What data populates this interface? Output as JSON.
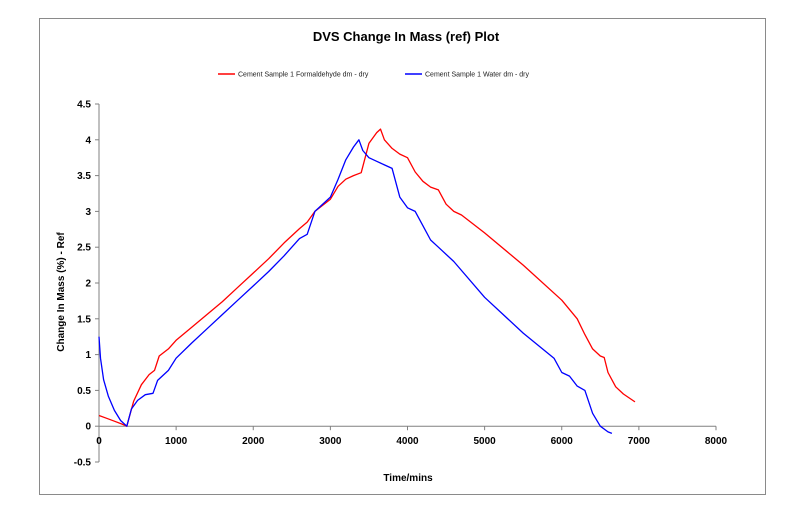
{
  "chart_data": {
    "type": "line",
    "title": "DVS Change In Mass (ref) Plot",
    "xlabel": "Time/mins",
    "ylabel": "Change In Mass (%) - Ref",
    "xlim": [
      0,
      8000
    ],
    "ylim": [
      -0.5,
      4.5
    ],
    "x_ticks": [
      "0",
      "1000",
      "2000",
      "3000",
      "4000",
      "5000",
      "6000",
      "7000",
      "8000"
    ],
    "y_ticks": [
      "4.5",
      "4",
      "3.5",
      "3",
      "2.5",
      "2",
      "1.5",
      "1",
      "0.5",
      "0",
      "-0.5"
    ],
    "grid": false,
    "legend_position": "top",
    "series": [
      {
        "name": "Cement Sample 1 Formaldehyde dm - dry",
        "color": "#ff0000",
        "points": [
          [
            0,
            0.15
          ],
          [
            100,
            0.11
          ],
          [
            200,
            0.07
          ],
          [
            300,
            0.03
          ],
          [
            360,
            0.0
          ],
          [
            450,
            0.35
          ],
          [
            550,
            0.58
          ],
          [
            650,
            0.72
          ],
          [
            720,
            0.78
          ],
          [
            780,
            0.98
          ],
          [
            900,
            1.08
          ],
          [
            1000,
            1.2
          ],
          [
            1200,
            1.38
          ],
          [
            1400,
            1.56
          ],
          [
            1600,
            1.74
          ],
          [
            1800,
            1.94
          ],
          [
            2000,
            2.14
          ],
          [
            2200,
            2.34
          ],
          [
            2400,
            2.56
          ],
          [
            2600,
            2.76
          ],
          [
            2700,
            2.85
          ],
          [
            2800,
            3.0
          ],
          [
            3000,
            3.17
          ],
          [
            3100,
            3.35
          ],
          [
            3200,
            3.45
          ],
          [
            3300,
            3.5
          ],
          [
            3400,
            3.54
          ],
          [
            3500,
            3.95
          ],
          [
            3600,
            4.1
          ],
          [
            3650,
            4.15
          ],
          [
            3700,
            4.0
          ],
          [
            3800,
            3.88
          ],
          [
            3900,
            3.8
          ],
          [
            4000,
            3.75
          ],
          [
            4100,
            3.55
          ],
          [
            4200,
            3.42
          ],
          [
            4300,
            3.34
          ],
          [
            4400,
            3.3
          ],
          [
            4500,
            3.1
          ],
          [
            4600,
            3.0
          ],
          [
            4700,
            2.95
          ],
          [
            5000,
            2.7
          ],
          [
            5500,
            2.25
          ],
          [
            6000,
            1.76
          ],
          [
            6200,
            1.5
          ],
          [
            6300,
            1.28
          ],
          [
            6400,
            1.08
          ],
          [
            6500,
            0.98
          ],
          [
            6550,
            0.96
          ],
          [
            6600,
            0.75
          ],
          [
            6700,
            0.55
          ],
          [
            6800,
            0.45
          ],
          [
            6950,
            0.34
          ]
        ]
      },
      {
        "name": "Cement Sample 1 Water dm - dry",
        "color": "#0000ff",
        "points": [
          [
            0,
            1.25
          ],
          [
            20,
            0.95
          ],
          [
            60,
            0.65
          ],
          [
            120,
            0.42
          ],
          [
            200,
            0.22
          ],
          [
            280,
            0.08
          ],
          [
            360,
            0.0
          ],
          [
            420,
            0.24
          ],
          [
            500,
            0.36
          ],
          [
            600,
            0.44
          ],
          [
            700,
            0.46
          ],
          [
            760,
            0.64
          ],
          [
            900,
            0.78
          ],
          [
            1000,
            0.95
          ],
          [
            1200,
            1.16
          ],
          [
            1400,
            1.36
          ],
          [
            1600,
            1.56
          ],
          [
            1800,
            1.76
          ],
          [
            2000,
            1.96
          ],
          [
            2200,
            2.16
          ],
          [
            2400,
            2.38
          ],
          [
            2600,
            2.62
          ],
          [
            2700,
            2.68
          ],
          [
            2800,
            3.0
          ],
          [
            3000,
            3.2
          ],
          [
            3100,
            3.45
          ],
          [
            3200,
            3.72
          ],
          [
            3300,
            3.9
          ],
          [
            3370,
            4.0
          ],
          [
            3420,
            3.85
          ],
          [
            3500,
            3.75
          ],
          [
            3600,
            3.7
          ],
          [
            3700,
            3.65
          ],
          [
            3800,
            3.6
          ],
          [
            3900,
            3.2
          ],
          [
            4000,
            3.05
          ],
          [
            4100,
            3.0
          ],
          [
            4200,
            2.8
          ],
          [
            4300,
            2.6
          ],
          [
            4400,
            2.5
          ],
          [
            4600,
            2.3
          ],
          [
            5000,
            1.8
          ],
          [
            5500,
            1.3
          ],
          [
            5900,
            0.95
          ],
          [
            6000,
            0.75
          ],
          [
            6100,
            0.7
          ],
          [
            6200,
            0.56
          ],
          [
            6300,
            0.5
          ],
          [
            6400,
            0.18
          ],
          [
            6500,
            0.0
          ],
          [
            6600,
            -0.08
          ],
          [
            6650,
            -0.1
          ]
        ]
      }
    ]
  }
}
